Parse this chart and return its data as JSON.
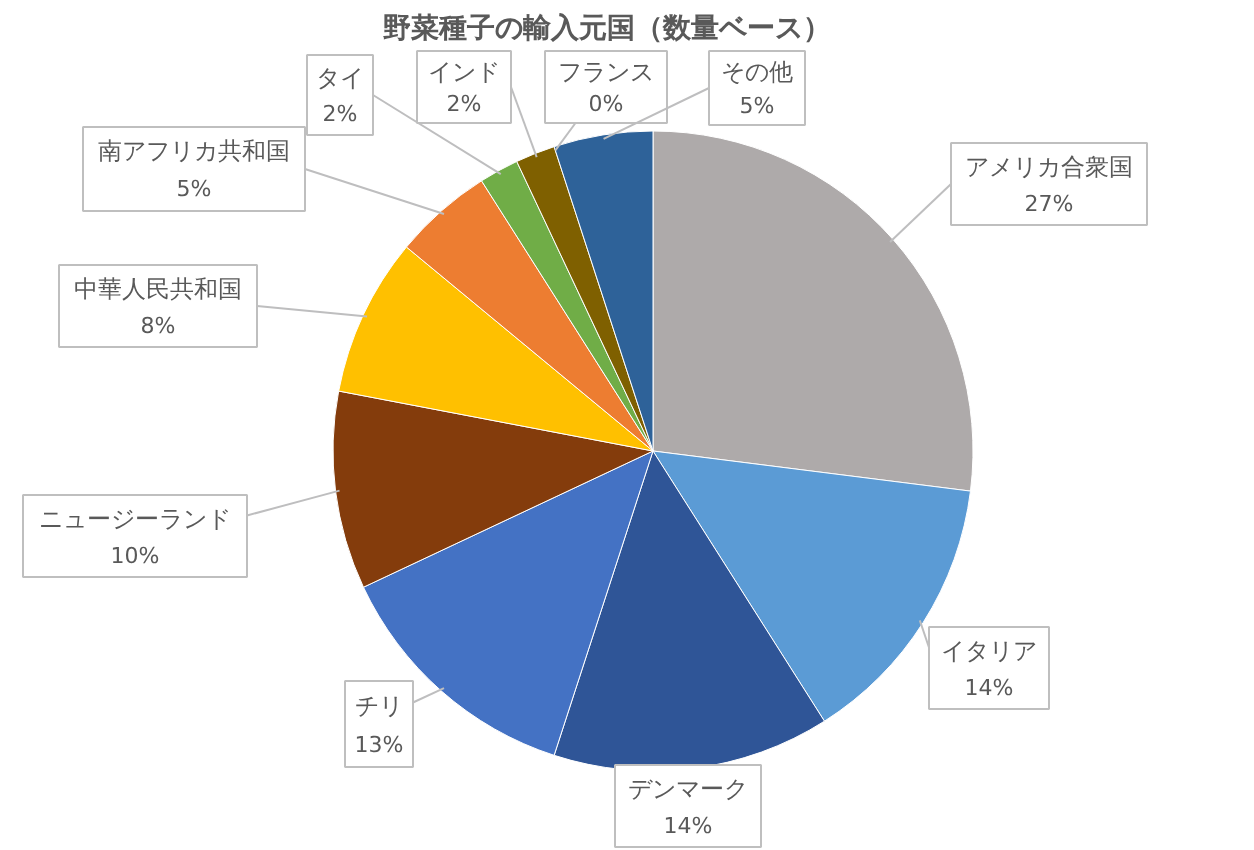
{
  "chart_data": {
    "type": "pie",
    "title": "野菜種子の輸入元国（数量ベース）",
    "categories": [
      "アメリカ合衆国",
      "イタリア",
      "デンマーク",
      "チリ",
      "ニュージーランド",
      "中華人民共和国",
      "南アフリカ共和国",
      "タイ",
      "インド",
      "フランス",
      "その他"
    ],
    "values": [
      27,
      14,
      14,
      13,
      10,
      8,
      5,
      2,
      2,
      0,
      5
    ],
    "colors": [
      "#aeaaaa",
      "#5b9bd5",
      "#2f5597",
      "#4472c4",
      "#843c0c",
      "#ffc000",
      "#ed7d31",
      "#70ad47",
      "#7f6000",
      "#a5a5a5",
      "#2e6299"
    ],
    "value_labels": [
      "27%",
      "14%",
      "14%",
      "13%",
      "10%",
      "8%",
      "5%",
      "2%",
      "2%",
      "0%",
      "5%"
    ]
  }
}
